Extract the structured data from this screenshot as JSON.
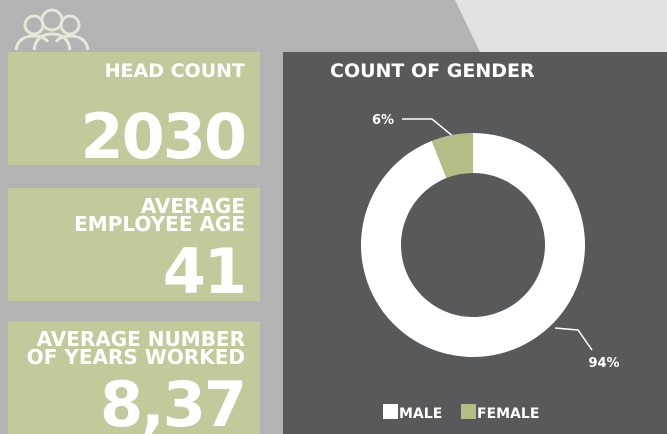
{
  "kpis": [
    {
      "label": [
        "HEAD COUNT"
      ],
      "value": "2030"
    },
    {
      "label": [
        "AVERAGE",
        "EMPLOYEE AGE"
      ],
      "value": "41"
    },
    {
      "label": [
        "AVERAGE NUMBER",
        "OF YEARS WORKED"
      ],
      "value": "8,37"
    }
  ],
  "chart_data": {
    "type": "pie",
    "title": "COUNT OF GENDER",
    "categories": [
      "MALE",
      "FEMALE"
    ],
    "values": [
      94,
      6
    ],
    "value_labels": [
      "94%",
      "6%"
    ],
    "colors": [
      "#ffffff",
      "#b5bc86"
    ],
    "donut": true,
    "legend": "bottom"
  }
}
